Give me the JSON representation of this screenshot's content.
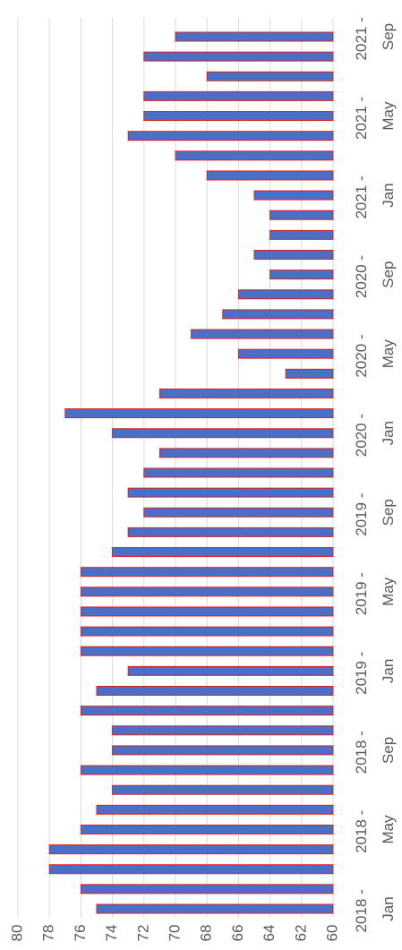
{
  "chart_data": {
    "type": "bar",
    "orientation": "horizontal",
    "categories": [
      "2018 - Jan",
      null,
      null,
      null,
      "2018 - May",
      null,
      null,
      null,
      "2018 - Sep",
      null,
      null,
      null,
      "2019 - Jan",
      null,
      null,
      null,
      "2019 - May",
      null,
      null,
      null,
      "2019 - Sep",
      null,
      null,
      null,
      "2020 - Jan",
      null,
      null,
      null,
      "2020 - May",
      null,
      null,
      null,
      "2020 - Sep",
      null,
      null,
      null,
      "2021 - Jan",
      null,
      null,
      null,
      "2021 - May",
      null,
      null,
      null,
      "2021 - Sep"
    ],
    "values": [
      75,
      76,
      78,
      78,
      76,
      75,
      74,
      76,
      74,
      74,
      76,
      75,
      73,
      76,
      76,
      76,
      76,
      76,
      74,
      73,
      72,
      73,
      72,
      71,
      74,
      77,
      71,
      63,
      66,
      69,
      67,
      66,
      64,
      65,
      64,
      64,
      65,
      68,
      70,
      73,
      72,
      72,
      68,
      72,
      70
    ],
    "color": "#4a6fc8",
    "edge_color": "#e0201b",
    "ylim": [
      60,
      80
    ],
    "yticks": [
      60,
      62,
      64,
      66,
      68,
      70,
      72,
      74,
      76,
      78,
      80
    ],
    "grid": true
  }
}
